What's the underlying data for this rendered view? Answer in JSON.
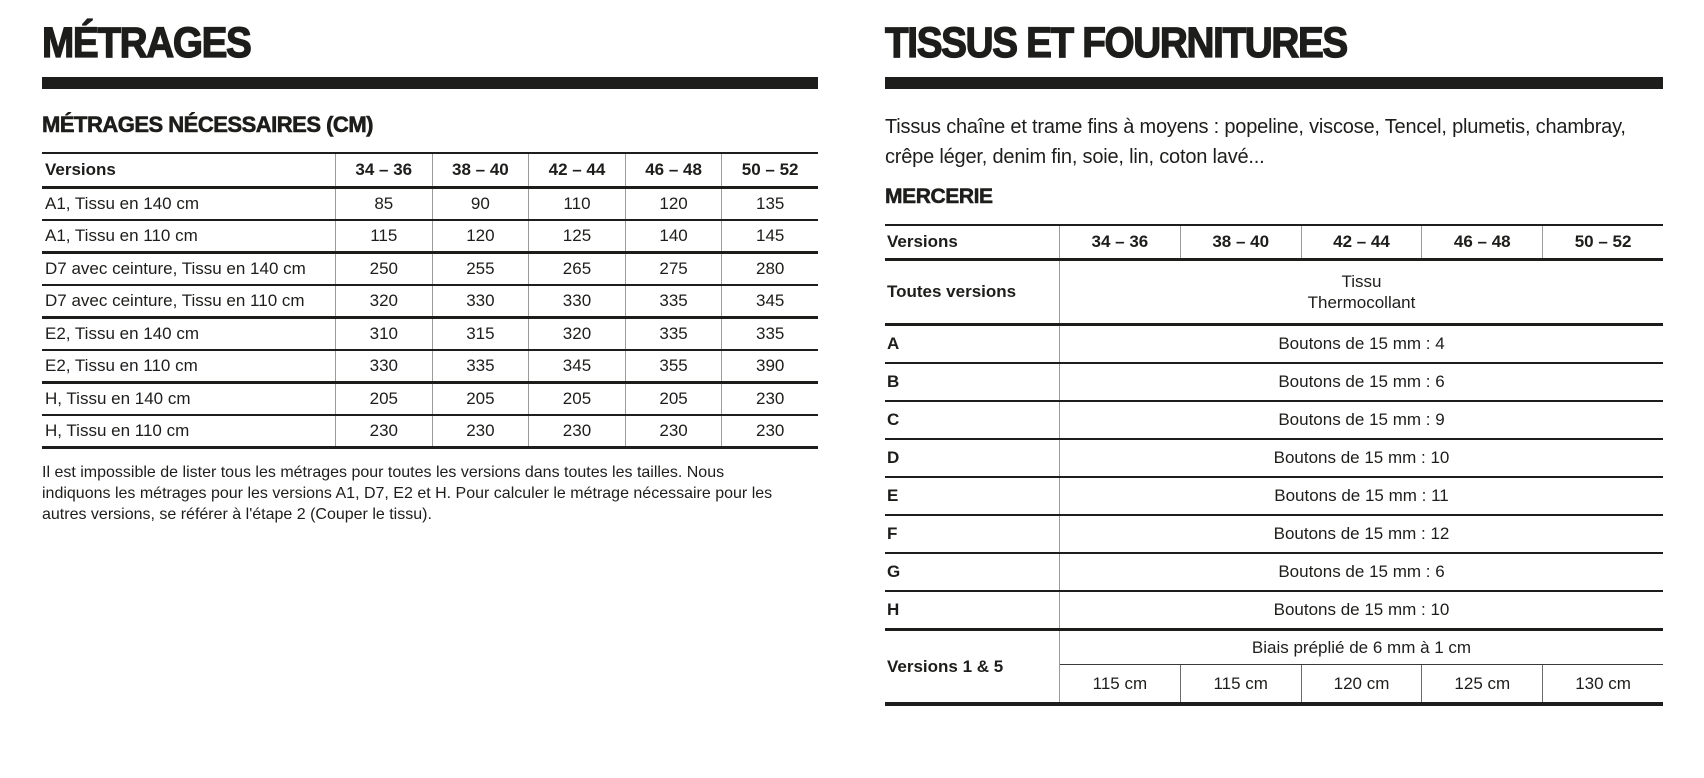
{
  "page": {
    "background": "#ffffff",
    "text_color": "#1d1d1b",
    "rule_color": "#1d1d1b",
    "grid_line_color": "#9b9b9b"
  },
  "left": {
    "title": "MÉTRAGES",
    "subtitle": "MÉTRAGES NÉCESSAIRES (CM)",
    "table": {
      "header": [
        "Versions",
        "34 – 36",
        "38 – 40",
        "42 – 44",
        "46 – 48",
        "50 – 52"
      ],
      "rows": [
        {
          "label": "A1, Tissu en 140 cm",
          "values": [
            "85",
            "90",
            "110",
            "120",
            "135"
          ]
        },
        {
          "label": "A1, Tissu en 110 cm",
          "values": [
            "115",
            "120",
            "125",
            "140",
            "145"
          ]
        },
        {
          "label": "D7 avec ceinture, Tissu en 140 cm",
          "values": [
            "250",
            "255",
            "265",
            "275",
            "280"
          ]
        },
        {
          "label": "D7 avec ceinture, Tissu en 110 cm",
          "values": [
            "320",
            "330",
            "330",
            "335",
            "345"
          ]
        },
        {
          "label": "E2, Tissu en 140 cm",
          "values": [
            "310",
            "315",
            "320",
            "335",
            "335"
          ]
        },
        {
          "label": "E2, Tissu en 110 cm",
          "values": [
            "330",
            "335",
            "345",
            "355",
            "390"
          ]
        },
        {
          "label": "H, Tissu en 140 cm",
          "values": [
            "205",
            "205",
            "205",
            "205",
            "230"
          ]
        },
        {
          "label": "H, Tissu en 110 cm",
          "values": [
            "230",
            "230",
            "230",
            "230",
            "230"
          ]
        }
      ]
    },
    "note": "Il est impossible de lister tous les métrages pour toutes les versions dans toutes les tailles. Nous indiquons les métrages pour les versions A1, D7, E2 et H. Pour calculer le métrage nécessaire pour les autres versions, se référer à l'étape 2 (Couper le tissu)."
  },
  "right": {
    "title": "TISSUS ET FOURNITURES",
    "intro": "Tissus chaîne et trame fins à moyens : popeline, viscose, Tencel, plumetis, chambray, crêpe léger, denim fin, soie, lin, coton lavé...",
    "subtitle": "MERCERIE",
    "table": {
      "header": [
        "Versions",
        "34 – 36",
        "38 – 40",
        "42 – 44",
        "46 – 48",
        "50 – 52"
      ],
      "toutes_versions": {
        "label": "Toutes versions",
        "line1": "Tissu",
        "line2": "Thermocollant"
      },
      "rows": [
        {
          "label": "A",
          "value": "Boutons de 15 mm : 4"
        },
        {
          "label": "B",
          "value": "Boutons de 15 mm : 6"
        },
        {
          "label": "C",
          "value": "Boutons de 15 mm : 9"
        },
        {
          "label": "D",
          "value": "Boutons de 15 mm : 10"
        },
        {
          "label": "E",
          "value": "Boutons de 15 mm : 11"
        },
        {
          "label": "F",
          "value": "Boutons de 15 mm : 12"
        },
        {
          "label": "G",
          "value": "Boutons de 15 mm : 6"
        },
        {
          "label": "H",
          "value": "Boutons de 15 mm : 10"
        }
      ],
      "versions_1_5": {
        "label": "Versions 1 & 5",
        "span": "Biais préplié de 6 mm à 1 cm",
        "cells": [
          "115 cm",
          "115 cm",
          "120 cm",
          "125 cm",
          "130 cm"
        ]
      }
    }
  }
}
